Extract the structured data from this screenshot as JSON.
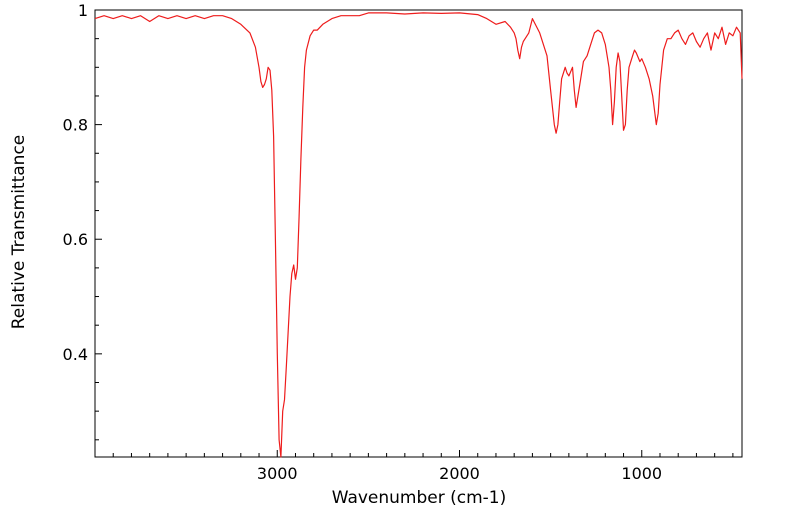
{
  "chart_data": {
    "type": "line",
    "title": "",
    "xlabel": "Wavenumber (cm-1)",
    "ylabel": "Relative Transmittance",
    "xlim": [
      4000,
      450
    ],
    "ylim": [
      0.22,
      1.0
    ],
    "x_reversed": true,
    "grid": false,
    "legend": "none",
    "x_ticks": [
      {
        "value": 3000,
        "label": "3000"
      },
      {
        "value": 2000,
        "label": "2000"
      },
      {
        "value": 1000,
        "label": "1000"
      }
    ],
    "y_ticks": [
      {
        "value": 1.0,
        "label": "1"
      },
      {
        "value": 0.8,
        "label": "0.8"
      },
      {
        "value": 0.6,
        "label": "0.6"
      },
      {
        "value": 0.4,
        "label": "0.4"
      }
    ],
    "series": [
      {
        "color": "#ee1c1c",
        "x": [
          4000,
          3950,
          3900,
          3850,
          3800,
          3750,
          3700,
          3650,
          3600,
          3550,
          3500,
          3450,
          3400,
          3350,
          3300,
          3250,
          3200,
          3150,
          3120,
          3100,
          3090,
          3080,
          3070,
          3060,
          3050,
          3040,
          3030,
          3020,
          3010,
          3000,
          2990,
          2980,
          2970,
          2960,
          2950,
          2940,
          2930,
          2920,
          2910,
          2900,
          2890,
          2880,
          2870,
          2860,
          2850,
          2840,
          2820,
          2800,
          2780,
          2750,
          2700,
          2650,
          2600,
          2550,
          2500,
          2400,
          2300,
          2200,
          2100,
          2000,
          1900,
          1850,
          1800,
          1750,
          1720,
          1700,
          1690,
          1680,
          1670,
          1660,
          1650,
          1640,
          1620,
          1600,
          1560,
          1520,
          1500,
          1480,
          1470,
          1460,
          1450,
          1440,
          1420,
          1410,
          1400,
          1380,
          1370,
          1360,
          1340,
          1320,
          1300,
          1280,
          1260,
          1240,
          1220,
          1200,
          1180,
          1170,
          1160,
          1150,
          1140,
          1130,
          1120,
          1110,
          1100,
          1090,
          1080,
          1070,
          1060,
          1050,
          1040,
          1030,
          1010,
          1000,
          980,
          960,
          940,
          920,
          910,
          900,
          890,
          880,
          860,
          840,
          820,
          800,
          780,
          760,
          740,
          720,
          700,
          680,
          660,
          640,
          620,
          600,
          580,
          560,
          540,
          520,
          500,
          480,
          460,
          450
        ],
        "y": [
          0.985,
          0.99,
          0.985,
          0.99,
          0.985,
          0.99,
          0.98,
          0.99,
          0.985,
          0.99,
          0.985,
          0.99,
          0.985,
          0.99,
          0.99,
          0.985,
          0.975,
          0.96,
          0.935,
          0.9,
          0.875,
          0.865,
          0.87,
          0.88,
          0.9,
          0.895,
          0.86,
          0.78,
          0.6,
          0.4,
          0.25,
          0.22,
          0.3,
          0.32,
          0.38,
          0.44,
          0.5,
          0.54,
          0.555,
          0.53,
          0.55,
          0.64,
          0.74,
          0.83,
          0.9,
          0.93,
          0.955,
          0.965,
          0.965,
          0.975,
          0.985,
          0.99,
          0.99,
          0.99,
          0.995,
          0.995,
          0.993,
          0.995,
          0.994,
          0.995,
          0.992,
          0.985,
          0.975,
          0.98,
          0.97,
          0.96,
          0.95,
          0.93,
          0.915,
          0.935,
          0.945,
          0.95,
          0.96,
          0.985,
          0.96,
          0.92,
          0.86,
          0.8,
          0.785,
          0.8,
          0.84,
          0.88,
          0.9,
          0.89,
          0.885,
          0.9,
          0.86,
          0.83,
          0.87,
          0.91,
          0.92,
          0.94,
          0.96,
          0.965,
          0.96,
          0.94,
          0.9,
          0.86,
          0.8,
          0.84,
          0.9,
          0.925,
          0.91,
          0.85,
          0.79,
          0.8,
          0.86,
          0.9,
          0.91,
          0.92,
          0.93,
          0.925,
          0.91,
          0.915,
          0.9,
          0.88,
          0.85,
          0.8,
          0.82,
          0.87,
          0.9,
          0.93,
          0.95,
          0.95,
          0.96,
          0.965,
          0.95,
          0.94,
          0.955,
          0.96,
          0.945,
          0.935,
          0.95,
          0.96,
          0.93,
          0.96,
          0.95,
          0.97,
          0.94,
          0.96,
          0.955,
          0.97,
          0.96,
          0.88
        ]
      }
    ]
  }
}
